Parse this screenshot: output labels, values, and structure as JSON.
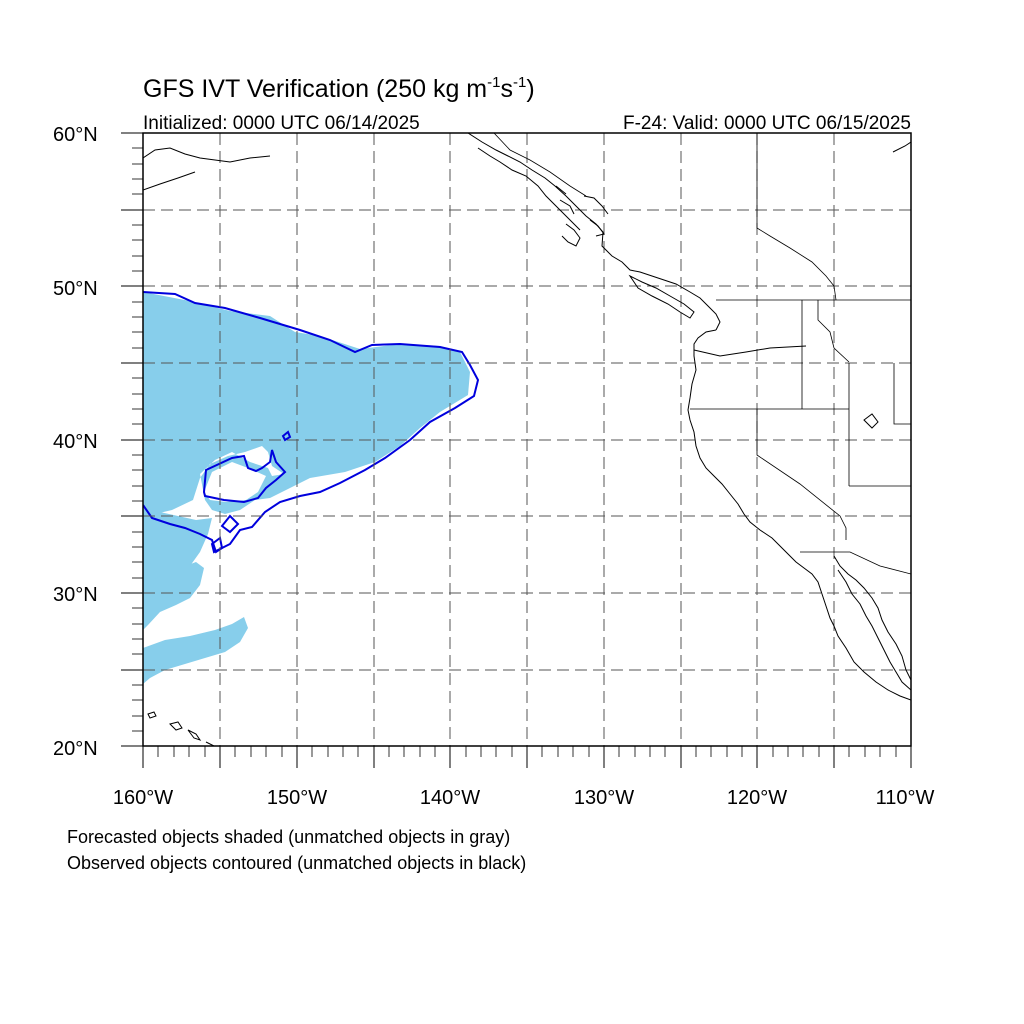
{
  "figure": {
    "title_main": "GFS IVT Verification (250 kg m",
    "title_exp1": "-1",
    "title_mid": "s",
    "title_exp2": "-1",
    "title_close": ")",
    "initialized": "Initialized: 0000 UTC 06/14/2025",
    "valid": "F-24: Valid: 0000 UTC 06/15/2025",
    "note_forecast": "Forecasted objects shaded (unmatched objects in gray)",
    "note_observed": "Observed objects contoured (unmatched objects in black)"
  },
  "axes": {
    "lon_range": [
      -160,
      -110
    ],
    "lat_range": [
      20,
      60
    ],
    "lat_labels": [
      {
        "value": 60,
        "label": "60°N"
      },
      {
        "value": 50,
        "label": "50°N"
      },
      {
        "value": 40,
        "label": "40°N"
      },
      {
        "value": 30,
        "label": "30°N"
      },
      {
        "value": 20,
        "label": "20°N"
      }
    ],
    "lon_labels": [
      {
        "value": -160,
        "label": "160°W"
      },
      {
        "value": -150,
        "label": "150°W"
      },
      {
        "value": -140,
        "label": "140°W"
      },
      {
        "value": -130,
        "label": "130°W"
      },
      {
        "value": -120,
        "label": "120°W"
      },
      {
        "value": -110,
        "label": "110°W"
      }
    ],
    "grid": "dashed, every 5 degrees"
  },
  "colors": {
    "forecast_fill": "#87ceeb",
    "observed_contour": "#0000dd",
    "coastline": "#000000",
    "grid": "#555555"
  }
}
